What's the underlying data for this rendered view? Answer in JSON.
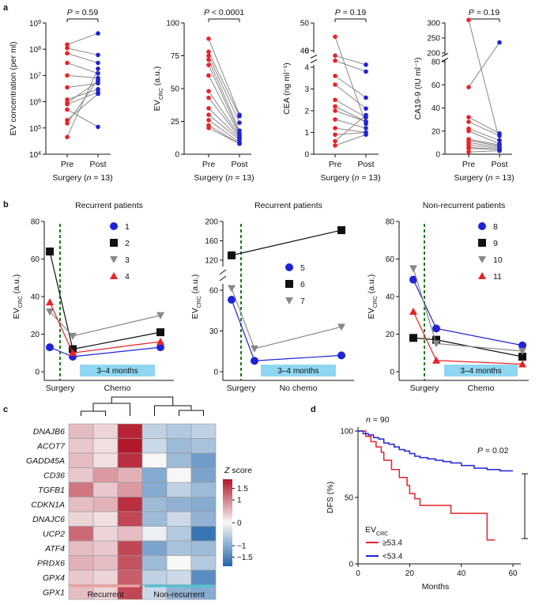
{
  "panels": {
    "a": "a",
    "b": "b",
    "c": "c",
    "d": "d"
  },
  "colors": {
    "red": "#e8232a",
    "blue": "#1f22d6",
    "grey": "#888888",
    "black": "#111111",
    "band": "#8fd6f2",
    "green": "#1a7a1a"
  },
  "chart_data": [
    {
      "id": "a1",
      "type": "line",
      "ylabel": "EV concentration (per ml)",
      "scale": "log",
      "yticks": [
        "10",
        "10",
        "10",
        "10",
        "10",
        "10"
      ],
      "yexp": [
        "4",
        "5",
        "6",
        "7",
        "8",
        "9"
      ],
      "categories": [
        "Pre",
        "Post"
      ],
      "xlabel_a": "Surgery (",
      "xlabel_n": "n",
      "xlabel_b": " = 13)",
      "stat_p": "P",
      "stat_v": " = 0.59",
      "pre": [
        150000000.0,
        110000000.0,
        70000000.0,
        30000000.0,
        10000000.0,
        3500000.0,
        1200000.0,
        800000.0,
        500000.0,
        200000.0,
        150000.0,
        45000.0,
        900000.0
      ],
      "post": [
        400000000.0,
        60000000.0,
        30000000.0,
        12000000.0,
        8000000.0,
        5000000.0,
        3000000.0,
        2300000.0,
        110000.0,
        2000000.0,
        7000000.0,
        18000000.0,
        6000000.0
      ]
    },
    {
      "id": "a2",
      "type": "line",
      "ylabel_a": "EV",
      "ylabel_sub": "CRC",
      "ylabel_b": " (a.u.)",
      "yticks": [
        "0",
        "25",
        "50",
        "75",
        "100"
      ],
      "ylim": [
        0,
        100
      ],
      "categories": [
        "Pre",
        "Post"
      ],
      "xlabel_a": "Surgery (",
      "xlabel_n": "n",
      "xlabel_b": " = 13)",
      "stat_p": "P",
      "stat_v": " < 0.0001",
      "pre": [
        88,
        78,
        75,
        72,
        68,
        60,
        48,
        43,
        35,
        30,
        26,
        22,
        20
      ],
      "post": [
        30,
        29,
        24,
        18,
        16,
        15,
        14,
        13,
        12,
        11,
        9,
        8,
        8
      ]
    },
    {
      "id": "a3",
      "type": "line",
      "ylabel": "CEA (ng ml⁻¹)",
      "split": true,
      "yticks": [
        "0",
        "1",
        "2",
        "3",
        "4",
        "6",
        "40",
        "50"
      ],
      "categories": [
        "Pre",
        "Post"
      ],
      "xlabel_a": "Surgery (",
      "xlabel_n": "n",
      "xlabel_b": " = 13)",
      "stat_p": "P",
      "stat_v": " = 0.19",
      "pre": [
        45,
        5.4,
        4.8,
        3.6,
        3.2,
        2.5,
        2.2,
        2.0,
        1.6,
        1.2,
        0.9,
        0.6,
        0.4
      ],
      "post": [
        1.4,
        4.3,
        3.8,
        2.6,
        2.1,
        1.7,
        1.5,
        1.5,
        1.2,
        1.0,
        1.0,
        1.8,
        0.9
      ]
    },
    {
      "id": "a4",
      "type": "line",
      "ylabel": "CA19-9 (IU ml⁻¹)",
      "split": true,
      "yticks": [
        "0",
        "20",
        "40",
        "60",
        "80",
        "200",
        "250",
        "300"
      ],
      "categories": [
        "Pre",
        "Post"
      ],
      "xlabel_a": "Surgery (",
      "xlabel_n": "n",
      "xlabel_b": " = 13)",
      "stat_p": "P",
      "stat_v": " = 0.19",
      "pre": [
        310,
        58,
        32,
        28,
        22,
        20,
        13,
        12,
        10,
        8,
        6,
        5,
        2
      ],
      "post": [
        12,
        235,
        18,
        16,
        12,
        9,
        8,
        7,
        6,
        5,
        4,
        4,
        3
      ]
    },
    {
      "id": "b1",
      "type": "line",
      "title": "Recurrent patients",
      "ylabel_a": "EV",
      "ylabel_sub": "CRC",
      "ylabel_b": " (a.u.)",
      "yticks": [
        "0",
        "20",
        "40",
        "60",
        "80"
      ],
      "ylim": [
        0,
        80
      ],
      "xlabels": [
        "Surgery",
        "Chemo"
      ],
      "band": "3–4 months",
      "series": [
        {
          "name": "1",
          "marker": "circle",
          "color": "#1f22d6",
          "x": [
            0,
            1,
            4
          ],
          "y": [
            13,
            8,
            13
          ]
        },
        {
          "name": "2",
          "marker": "square",
          "color": "#111111",
          "x": [
            0,
            1,
            4
          ],
          "y": [
            64,
            12,
            21
          ]
        },
        {
          "name": "3",
          "marker": "tri-down",
          "color": "#888888",
          "x": [
            0,
            1,
            4
          ],
          "y": [
            32,
            19,
            30
          ]
        },
        {
          "name": "4",
          "marker": "tri-up",
          "color": "#e8232a",
          "x": [
            0,
            1,
            4
          ],
          "y": [
            37,
            10,
            16
          ]
        }
      ]
    },
    {
      "id": "b2",
      "type": "line",
      "title": "Recurrent patients",
      "ylabel_a": "EV",
      "ylabel_sub": "CRC",
      "ylabel_b": " (a.u.)",
      "yticks": [
        "0",
        "30",
        "60",
        "120",
        "160",
        "200"
      ],
      "xlabels": [
        "Surgery",
        "No chemo"
      ],
      "band": "3–4 months",
      "series": [
        {
          "name": "5",
          "marker": "circle",
          "color": "#1f22d6",
          "x": [
            0,
            1,
            4
          ],
          "y": [
            53,
            8,
            12
          ]
        },
        {
          "name": "6",
          "marker": "square",
          "color": "#111111",
          "x": [
            0,
            4
          ],
          "y": [
            130,
            182
          ]
        },
        {
          "name": "7",
          "marker": "tri-down",
          "color": "#888888",
          "x": [
            0,
            1,
            4
          ],
          "y": [
            62,
            17,
            33
          ]
        }
      ]
    },
    {
      "id": "b3",
      "type": "line",
      "title": "Non-recurrent patients",
      "ylabel_a": "EV",
      "ylabel_sub": "CRC",
      "ylabel_b": " (a.u.)",
      "yticks": [
        "0",
        "20",
        "40",
        "60",
        "80"
      ],
      "ylim": [
        0,
        80
      ],
      "xlabels": [
        "Surgery",
        "Chemo"
      ],
      "band": "3–4 months",
      "series": [
        {
          "name": "8",
          "marker": "circle",
          "color": "#1f22d6",
          "x": [
            0,
            1,
            4
          ],
          "y": [
            49,
            23,
            14
          ]
        },
        {
          "name": "9",
          "marker": "square",
          "color": "#111111",
          "x": [
            0,
            1,
            4
          ],
          "y": [
            18,
            17,
            8
          ]
        },
        {
          "name": "10",
          "marker": "tri-down",
          "color": "#888888",
          "x": [
            0,
            1,
            4
          ],
          "y": [
            55,
            15,
            11
          ]
        },
        {
          "name": "11",
          "marker": "tri-up",
          "color": "#e8232a",
          "x": [
            0,
            1,
            4
          ],
          "y": [
            32,
            6,
            4
          ]
        }
      ]
    },
    {
      "id": "c",
      "type": "heatmap",
      "rows": [
        "DNAJB6",
        "ACOT7",
        "GADD45A",
        "CD36",
        "TGFB1",
        "CDKN1A",
        "DNAJC6",
        "UCP2",
        "ATF4",
        "PRDX6",
        "GPX4",
        "GPX1"
      ],
      "values": [
        [
          0.5,
          0.3,
          1.8,
          -0.5,
          -0.6,
          -0.5
        ],
        [
          0.4,
          0.2,
          1.9,
          -0.4,
          -0.8,
          -0.7
        ],
        [
          0.5,
          0.2,
          1.7,
          0.0,
          -0.8,
          -1.2
        ],
        [
          0.4,
          0.8,
          0.6,
          -1.0,
          0.0,
          -1.1
        ],
        [
          1.1,
          0.4,
          0.8,
          -1.0,
          -0.5,
          -0.8
        ],
        [
          0.5,
          0.6,
          1.7,
          -0.8,
          -0.9,
          -1.0
        ],
        [
          0.3,
          0.2,
          1.5,
          -0.8,
          -0.4,
          -0.9
        ],
        [
          1.2,
          0.3,
          0.5,
          -0.1,
          -0.6,
          -1.7
        ],
        [
          0.5,
          0.4,
          1.5,
          -1.1,
          -0.7,
          -0.8
        ],
        [
          0.6,
          0.5,
          1.4,
          -0.8,
          0.0,
          -0.6
        ],
        [
          0.4,
          0.3,
          1.3,
          -0.5,
          -0.4,
          -1.4
        ],
        [
          0.5,
          0.3,
          1.5,
          -0.4,
          -0.9,
          -1.0
        ]
      ],
      "legend_title": "Z score",
      "legend_ticks": [
        "1.5",
        "1",
        "0",
        "−1",
        "−1.5"
      ],
      "groups": [
        "Recurrent",
        "Non-recurrent"
      ]
    },
    {
      "id": "d",
      "type": "line",
      "ylabel": "DFS (%)",
      "xlabel": "Months",
      "xticks": [
        "0",
        "20",
        "40",
        "60"
      ],
      "yticks": [
        "0",
        "50",
        "100"
      ],
      "n_label": "n",
      "n_value": " = 90",
      "p_label": "P",
      "p_value": " = 0.02",
      "legend_a": "EV",
      "legend_sub": "CRC",
      "series": [
        {
          "name": "≥53.4",
          "color": "#e8232a",
          "x": [
            0,
            3,
            5,
            7,
            9,
            10,
            13,
            16,
            19,
            20,
            22,
            24,
            36,
            50,
            53
          ],
          "y": [
            100,
            96,
            92,
            88,
            84,
            78,
            71,
            65,
            59,
            53,
            49,
            44,
            38,
            18,
            18
          ]
        },
        {
          "name": "<53.4",
          "color": "#1f22d6",
          "x": [
            0,
            2,
            4,
            6,
            8,
            10,
            12,
            14,
            16,
            18,
            20,
            22,
            24,
            27,
            30,
            33,
            36,
            40,
            45,
            50,
            55,
            60
          ],
          "y": [
            100,
            98,
            97,
            95,
            94,
            91,
            90,
            88,
            86,
            85,
            83,
            81,
            80,
            79,
            78,
            77,
            76,
            74,
            72,
            71,
            70,
            70
          ]
        }
      ]
    }
  ]
}
